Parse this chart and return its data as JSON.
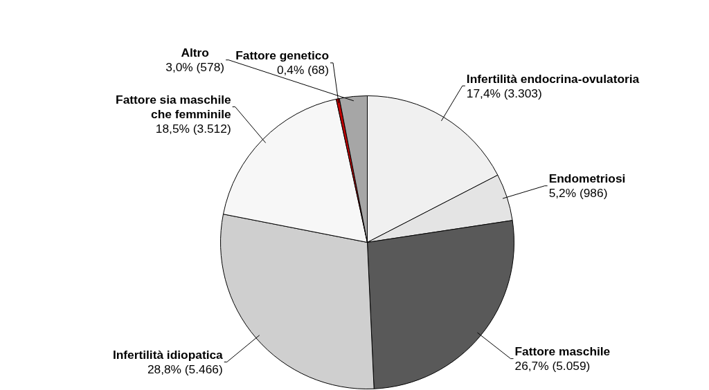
{
  "chart_data": {
    "type": "pie",
    "categories": [
      "Infertilità endocrina-ovulatoria",
      "Endometriosi",
      "Fattore maschile",
      "Infertilità idiopatica",
      "Fattore sia maschile\nche femminile",
      "Fattore genetico",
      "Altro"
    ],
    "values": [
      3303,
      986,
      5059,
      5466,
      3512,
      68,
      578
    ],
    "value_labels": [
      "17,4% (3.303)",
      "5,2% (986)",
      "26,7% (5.059)",
      "28,8% (5.466)",
      "18,5% (3.512)",
      "0,4% (68)",
      "3,0% (578)"
    ],
    "colors": [
      "#f0f0f0",
      "#e4e4e4",
      "#595959",
      "#cfcfcf",
      "#f7f7f7",
      "#c00000",
      "#a6a6a6"
    ]
  }
}
